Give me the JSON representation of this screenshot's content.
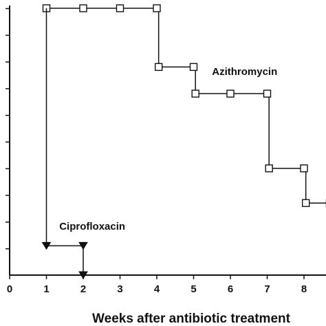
{
  "chart_data": {
    "type": "line",
    "title": "",
    "xlabel": "Weeks after antibiotic treatment",
    "ylabel": "",
    "xlim": [
      0,
      8.7
    ],
    "ylim": [
      0,
      10
    ],
    "x_ticks": [
      0,
      1,
      2,
      3,
      4,
      5,
      6,
      7,
      8
    ],
    "y_tick_count": 10,
    "grid": false,
    "step": true,
    "series": [
      {
        "name": "Azithromycin",
        "marker": "square",
        "points": [
          [
            1,
            10
          ],
          [
            2,
            10
          ],
          [
            3,
            10
          ],
          [
            4,
            10
          ],
          [
            4.05,
            7.8
          ],
          [
            5,
            7.8
          ],
          [
            5.05,
            6.8
          ],
          [
            6,
            6.8
          ],
          [
            7,
            6.8
          ],
          [
            7.05,
            4.0
          ],
          [
            8,
            4.0
          ],
          [
            8.05,
            2.7
          ],
          [
            8.7,
            2.7
          ]
        ]
      },
      {
        "name": "Ciprofloxacin",
        "marker": "triangle-down",
        "points": [
          [
            1,
            10
          ],
          [
            1,
            1.1
          ],
          [
            2,
            1.1
          ],
          [
            2,
            0
          ]
        ]
      }
    ],
    "annotations": [
      {
        "text": "Azithromycin",
        "x": 5.5,
        "y": 7.5
      },
      {
        "text": "Ciprofloxacin",
        "x": 1.35,
        "y": 1.7
      }
    ]
  }
}
